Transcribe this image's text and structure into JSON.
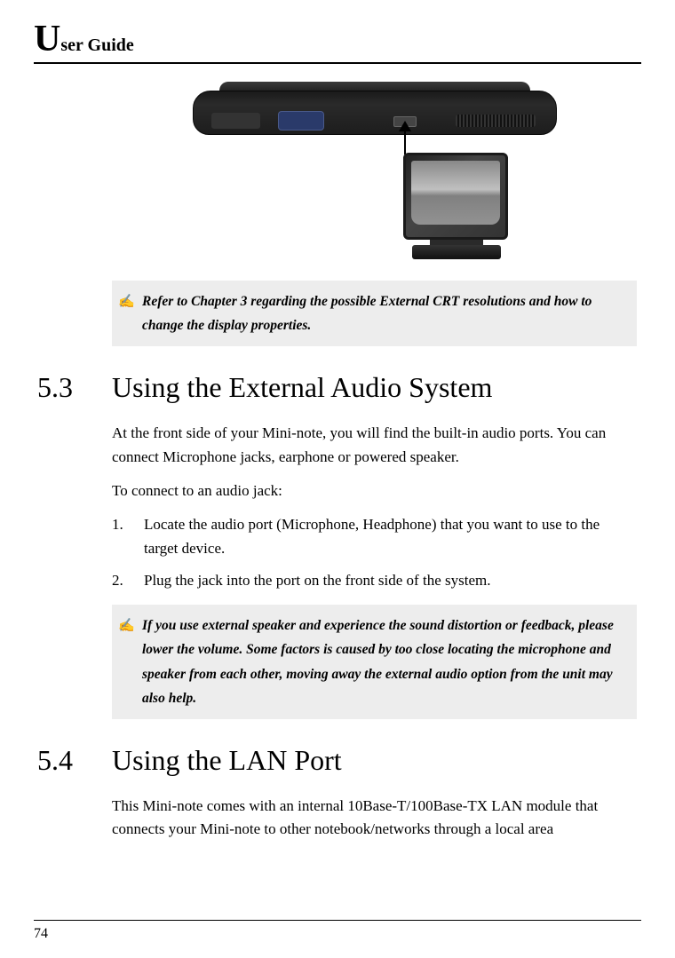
{
  "header": {
    "big_letter": "U",
    "rest": "ser Guide"
  },
  "note1": {
    "text": "Refer to Chapter 3 regarding the possible External CRT resolutions and how to change the display properties."
  },
  "section53": {
    "number": "5.3",
    "title": "Using the External Audio System",
    "para1": "At the front side of your Mini-note, you will find the built-in audio ports. You can connect Microphone jacks, earphone or powered speaker.",
    "para2": "To connect to an audio jack:",
    "steps": [
      "Locate the audio port (Microphone, Headphone) that you want to use to the target device.",
      "Plug the jack into the port on the front side of the system."
    ]
  },
  "note2": {
    "text": "If you use external speaker and experience the sound distortion or feedback, please lower the volume. Some factors is caused by too close locating the microphone and speaker from each other, moving away the external audio option from the unit may also help."
  },
  "section54": {
    "number": "5.4",
    "title": "Using the LAN Port",
    "para1": "This Mini-note comes with an internal 10Base-T/100Base-TX LAN module that connects your Mini-note to other notebook/networks through a local area"
  },
  "footer": {
    "page": "74"
  }
}
